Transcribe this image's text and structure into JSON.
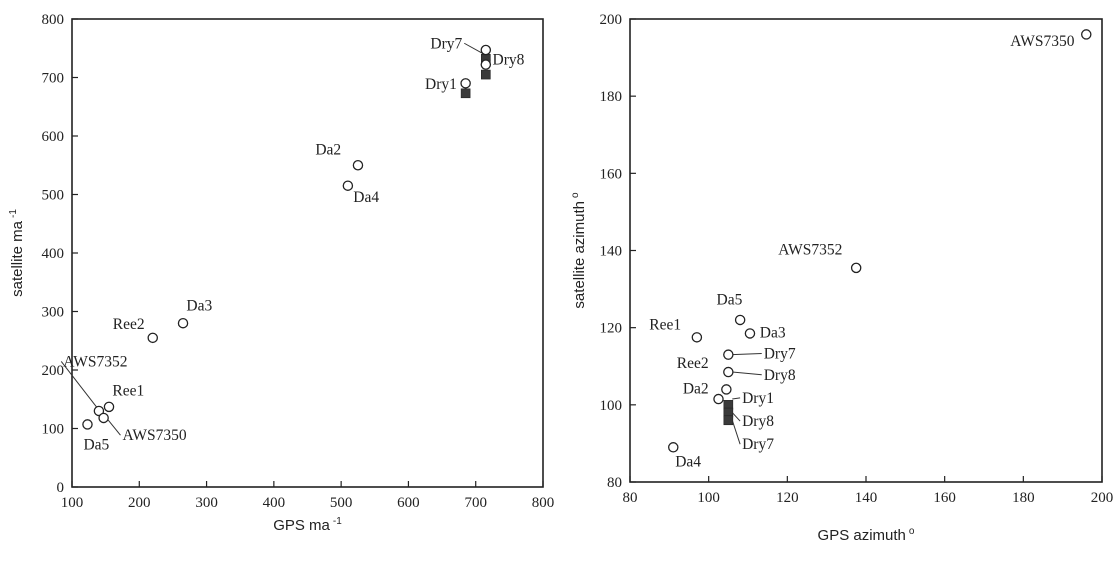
{
  "chart_data": [
    {
      "type": "scatter",
      "xlabel": "GPS ma",
      "xlabel_sup": "-1",
      "ylabel": "satellite ma",
      "ylabel_sup": "-1",
      "xlim": [
        100,
        800
      ],
      "ylim": [
        0,
        800
      ],
      "xticks": [
        100,
        200,
        300,
        400,
        500,
        600,
        700,
        800
      ],
      "yticks": [
        0,
        100,
        200,
        300,
        400,
        500,
        600,
        700,
        800
      ],
      "grid": false,
      "circles": [
        {
          "x": 715,
          "y": 747
        },
        {
          "x": 715,
          "y": 722
        },
        {
          "x": 685,
          "y": 690
        },
        {
          "x": 525,
          "y": 550
        },
        {
          "x": 510,
          "y": 515
        },
        {
          "x": 265,
          "y": 280
        },
        {
          "x": 220,
          "y": 255
        },
        {
          "x": 155,
          "y": 137
        },
        {
          "x": 140,
          "y": 130
        },
        {
          "x": 147,
          "y": 118
        },
        {
          "x": 123,
          "y": 107
        }
      ],
      "squares": [
        {
          "x": 715,
          "y": 732
        },
        {
          "x": 715,
          "y": 705
        },
        {
          "x": 685,
          "y": 673
        }
      ],
      "labels": [
        {
          "text": "Dry7",
          "x": 680,
          "y": 750,
          "lx": 712,
          "ly": 740,
          "anchor": "end"
        },
        {
          "text": "Dry8",
          "x": 725,
          "y": 722,
          "lx": 718,
          "ly": 728,
          "anchor": "start"
        },
        {
          "text": "Dry1",
          "x": 672,
          "y": 680,
          "anchor": "end"
        },
        {
          "text": "Da2",
          "x": 500,
          "y": 568,
          "anchor": "end"
        },
        {
          "text": "Da4",
          "x": 518,
          "y": 487,
          "anchor": "start"
        },
        {
          "text": "Da3",
          "x": 270,
          "y": 302,
          "anchor": "start"
        },
        {
          "text": "Ree2",
          "x": 208,
          "y": 270,
          "anchor": "end"
        },
        {
          "text": "AWS7352",
          "x": 87,
          "y": 206,
          "lx": 137,
          "ly": 136,
          "anchor": "start"
        },
        {
          "text": "Ree1",
          "x": 160,
          "y": 156,
          "anchor": "start"
        },
        {
          "text": "AWS7350",
          "x": 175,
          "y": 80,
          "lx": 152,
          "ly": 117,
          "anchor": "start"
        },
        {
          "text": "Da5",
          "x": 117,
          "y": 64,
          "anchor": "start"
        }
      ]
    },
    {
      "type": "scatter",
      "xlabel": "GPS azimuth",
      "xlabel_sup": "o",
      "ylabel": "satellite azimuth",
      "ylabel_sup": "o",
      "xlim": [
        80,
        200
      ],
      "ylim": [
        80,
        200
      ],
      "xticks": [
        80,
        100,
        120,
        140,
        160,
        180,
        200
      ],
      "yticks": [
        80,
        100,
        120,
        140,
        160,
        180,
        200
      ],
      "grid": false,
      "circles": [
        {
          "x": 196,
          "y": 196
        },
        {
          "x": 137.5,
          "y": 135.5
        },
        {
          "x": 108,
          "y": 122
        },
        {
          "x": 110.5,
          "y": 118.5
        },
        {
          "x": 97,
          "y": 117.5
        },
        {
          "x": 105,
          "y": 113
        },
        {
          "x": 105,
          "y": 108.5
        },
        {
          "x": 104.5,
          "y": 104
        },
        {
          "x": 102.5,
          "y": 101.5
        },
        {
          "x": 91,
          "y": 89
        }
      ],
      "squares": [
        {
          "x": 105,
          "y": 100
        },
        {
          "x": 105,
          "y": 98
        },
        {
          "x": 105,
          "y": 96
        }
      ],
      "labels": [
        {
          "text": "AWS7350",
          "x": 193,
          "y": 193,
          "anchor": "end"
        },
        {
          "text": "AWS7352",
          "x": 134,
          "y": 139,
          "anchor": "end"
        },
        {
          "text": "Da5",
          "x": 102,
          "y": 126,
          "anchor": "start"
        },
        {
          "text": "Da3",
          "x": 113,
          "y": 117.5,
          "anchor": "start"
        },
        {
          "text": "Ree1",
          "x": 93,
          "y": 119.5,
          "anchor": "end"
        },
        {
          "text": "Dry7",
          "x": 114,
          "y": 112,
          "lx": 106,
          "ly": 113,
          "anchor": "start"
        },
        {
          "text": "Ree2",
          "x": 100,
          "y": 109.5,
          "anchor": "end"
        },
        {
          "text": "Dry8",
          "x": 114,
          "y": 106.5,
          "lx": 106,
          "ly": 108.5,
          "anchor": "start"
        },
        {
          "text": "Da2",
          "x": 100,
          "y": 103,
          "anchor": "end"
        },
        {
          "text": "Dry1",
          "x": 108.5,
          "y": 100.5,
          "lx": 106,
          "ly": 101.5,
          "anchor": "start"
        },
        {
          "text": "Dry8",
          "x": 108.5,
          "y": 94.5,
          "lx": 106,
          "ly": 98,
          "anchor": "start"
        },
        {
          "text": "Dry7",
          "x": 108.5,
          "y": 88.5,
          "lx": 106,
          "ly": 96,
          "anchor": "start"
        },
        {
          "text": "Da4",
          "x": 91.5,
          "y": 84,
          "anchor": "start"
        }
      ]
    }
  ]
}
